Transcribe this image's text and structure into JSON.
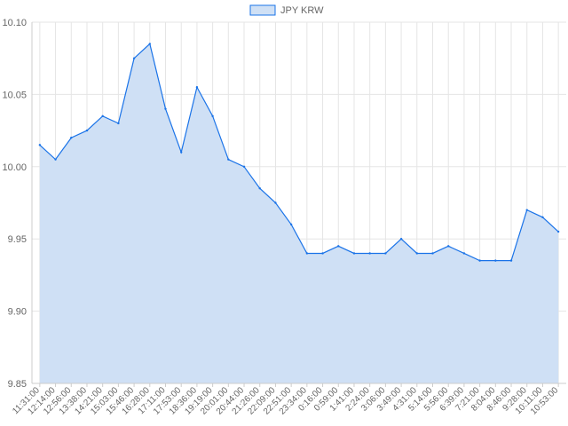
{
  "chart_data": {
    "type": "area",
    "title": "",
    "xlabel": "",
    "ylabel": "",
    "legend": {
      "position": "top-center",
      "entries": [
        "JPY KRW"
      ]
    },
    "series": [
      {
        "name": "JPY KRW",
        "x": [
          "11:31:00",
          "12:14:00",
          "12:56:00",
          "13:38:00",
          "14:21:00",
          "15:03:00",
          "15:46:00",
          "16:28:00",
          "17:11:00",
          "17:53:00",
          "18:36:00",
          "19:19:00",
          "20:01:00",
          "20:44:00",
          "21:26:00",
          "22:09:00",
          "22:51:00",
          "23:34:00",
          "0:16:00",
          "0:59:00",
          "1:41:00",
          "2:24:00",
          "3:06:00",
          "3:49:00",
          "4:31:00",
          "5:14:00",
          "5:56:00",
          "6:39:00",
          "7:21:00",
          "8:04:00",
          "8:46:00",
          "9:28:00",
          "10:11:00",
          "10:53:00"
        ],
        "values": [
          10.015,
          10.005,
          10.02,
          10.025,
          10.035,
          10.03,
          10.075,
          10.085,
          10.04,
          10.01,
          10.055,
          10.035,
          10.005,
          10.0,
          9.985,
          9.975,
          9.96,
          9.94,
          9.94,
          9.945,
          9.94,
          9.94,
          9.94,
          9.95,
          9.94,
          9.94,
          9.945,
          9.94,
          9.935,
          9.935,
          9.935,
          9.97,
          9.965,
          9.955
        ]
      }
    ],
    "ylim": [
      9.85,
      10.1
    ],
    "y_ticks": [
      "9.85",
      "9.90",
      "9.95",
      "10.00",
      "10.05",
      "10.10"
    ],
    "grid": true,
    "colors": {
      "line": "#1a73e8",
      "fill": "#cfe0f5",
      "grid": "#e5e5e5"
    }
  }
}
